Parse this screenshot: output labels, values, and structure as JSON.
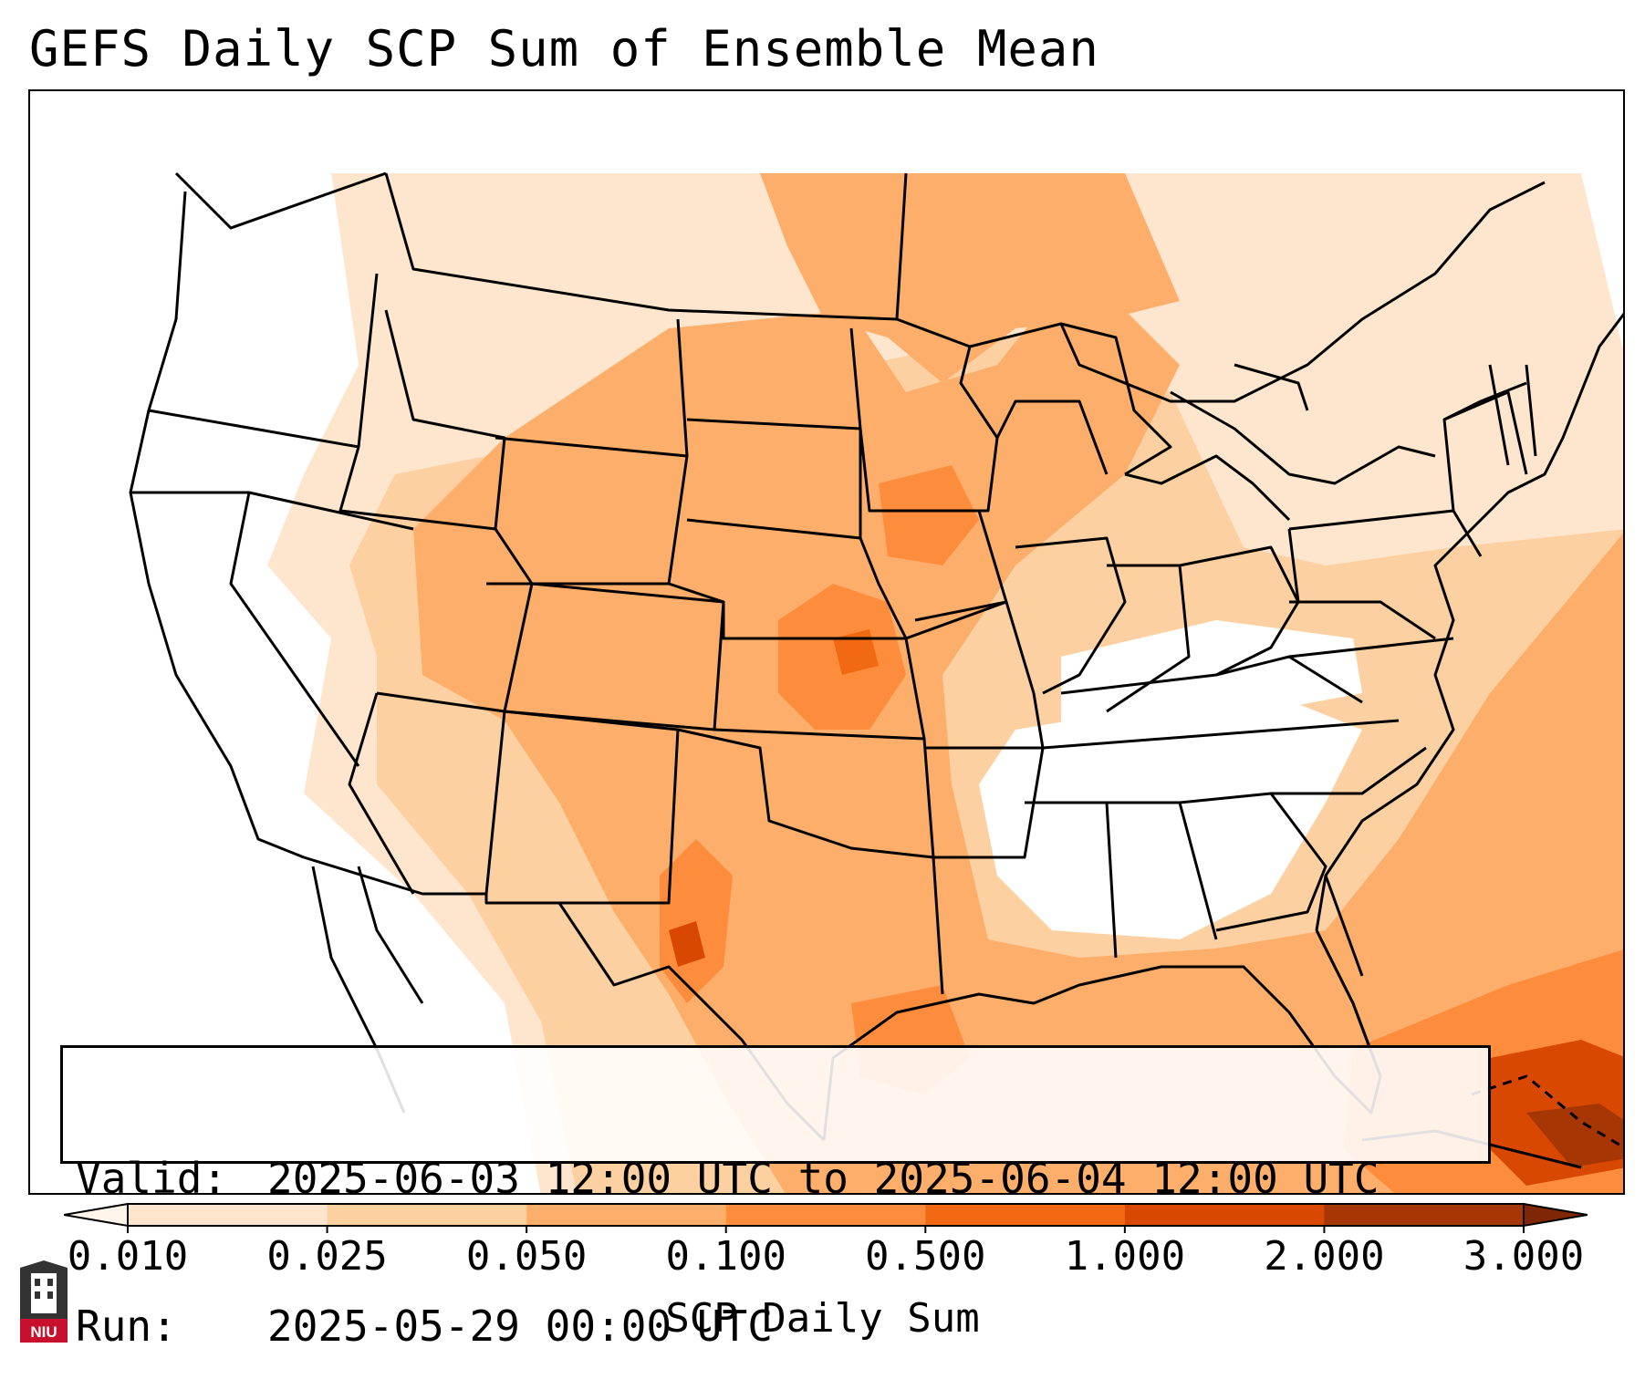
{
  "title": "GEFS Daily SCP Sum of Ensemble Mean",
  "info": {
    "valid_label": "Valid:",
    "valid_value": "2025-06-03 12:00 UTC to 2025-06-04 12:00 UTC",
    "run_label": "Run:",
    "run_value": "2025-05-29 00:00 UTC"
  },
  "colorbar": {
    "label": "SCP Daily Sum",
    "ticks": [
      "0.010",
      "0.025",
      "0.050",
      "0.100",
      "0.500",
      "1.000",
      "2.000",
      "3.000"
    ],
    "colors": [
      "#fff5eb",
      "#fee6ce",
      "#fdd0a2",
      "#fdae6b",
      "#fd8d3c",
      "#f16913",
      "#d94801",
      "#a63603",
      "#7f2704"
    ],
    "extend": "both"
  },
  "logo": {
    "text": "NIU",
    "colors": {
      "shield": "#333333",
      "banner": "#c8102e"
    }
  }
}
